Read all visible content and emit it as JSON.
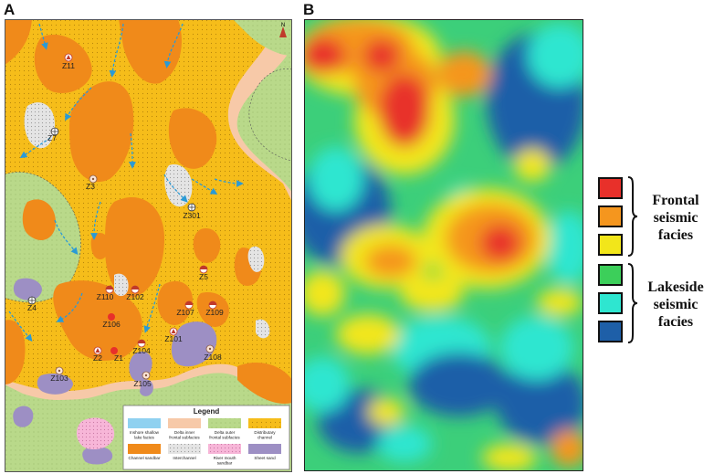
{
  "panels": {
    "a_label": "A",
    "b_label": "B"
  },
  "map_a": {
    "north_symbol": "N",
    "wells": [
      {
        "name": "Z11",
        "symbol": "tri-red"
      },
      {
        "name": "Z7",
        "symbol": "circle-cross"
      },
      {
        "name": "Z3",
        "symbol": "circle-light"
      },
      {
        "name": "Z301",
        "symbol": "circle-cross"
      },
      {
        "name": "Z5",
        "symbol": "half-red"
      },
      {
        "name": "Z110",
        "symbol": "half-red"
      },
      {
        "name": "Z102",
        "symbol": "half-red"
      },
      {
        "name": "Z107",
        "symbol": "half-red"
      },
      {
        "name": "Z109",
        "symbol": "half-red"
      },
      {
        "name": "Z4",
        "symbol": "circle-cross"
      },
      {
        "name": "Z106",
        "symbol": "dot-red"
      },
      {
        "name": "Z101",
        "symbol": "tri-red"
      },
      {
        "name": "Z104",
        "symbol": "half-red"
      },
      {
        "name": "Z2",
        "symbol": "tri-red"
      },
      {
        "name": "Z1",
        "symbol": "dot-red"
      },
      {
        "name": "Z103",
        "symbol": "circle-light"
      },
      {
        "name": "Z105",
        "symbol": "circle-light"
      },
      {
        "name": "Z108",
        "symbol": "circle-light"
      }
    ],
    "legend": {
      "title": "Legend",
      "items": [
        {
          "label_1": "Inshore shallow",
          "label_2": "lake facies",
          "color": "#8fd1f0",
          "pattern": "plain"
        },
        {
          "label_1": "Delta inner",
          "label_2": "frontal subfacies",
          "color": "#f7c9a8",
          "pattern": "plain"
        },
        {
          "label_1": "Delta outer",
          "label_2": "frontal subfacies",
          "color": "#b9d98a",
          "pattern": "dots"
        },
        {
          "label_1": "Distributary",
          "label_2": "channel",
          "color": "#f6bd1a",
          "pattern": "dots"
        },
        {
          "label_1": "Channel sandbar",
          "label_2": "",
          "color": "#f08a1a",
          "pattern": "plain"
        },
        {
          "label_1": "Interchannel",
          "label_2": "",
          "color": "#d9d9d9",
          "pattern": "dots"
        },
        {
          "label_1": "River mouth",
          "label_2": "sandbar",
          "color": "#f7b6d8",
          "pattern": "dots"
        },
        {
          "label_1": "Sheet sand",
          "label_2": "",
          "color": "#9d8fc4",
          "pattern": "plain"
        }
      ]
    }
  },
  "map_b": {
    "facies_groups": [
      {
        "label_lines": [
          "Frontal",
          "seismic",
          "facies"
        ],
        "swatches": [
          "#e8302a",
          "#f5961e",
          "#f2e61a"
        ]
      },
      {
        "label_lines": [
          "Lakeside",
          "seismic",
          "facies"
        ],
        "swatches": [
          "#3ccf5a",
          "#2ee6d0",
          "#1e5fa8"
        ]
      }
    ]
  }
}
